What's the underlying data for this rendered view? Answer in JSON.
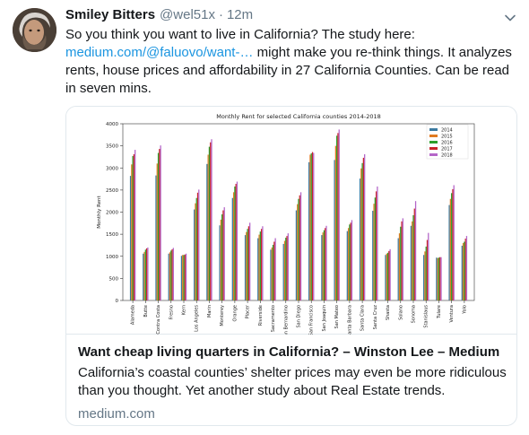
{
  "tweet": {
    "display_name": "Smiley Bitters",
    "handle": "@wel51x",
    "separator": "·",
    "time": "12m",
    "text_line1": "So you think you want to live in California? The study here:",
    "link_text": "medium.com/@faluovo/want-…",
    "text_after_link": " might make you re-think things. It analyzes rents, house prices and affordability in 27 California Counties. Can be read in seven mins."
  },
  "card": {
    "title": "Want cheap living quarters in California? – Winston Lee – Medium",
    "description": "California’s coastal counties’ shelter prices may even be more ridiculous than you thought. Yet another study about Real Estate trends.",
    "domain": "medium.com"
  },
  "icons": {
    "caret": "chevron-down-icon",
    "avatar": "avatar"
  },
  "chart_data": {
    "type": "bar",
    "title": "Monthly Rent for selected California counties 2014-2018",
    "xlabel": "",
    "ylabel": "Monthly Rent",
    "ylim": [
      0,
      4000
    ],
    "yticks": [
      0,
      500,
      1000,
      1500,
      2000,
      2500,
      3000,
      3500,
      4000
    ],
    "grid": false,
    "legend_position": "top-right",
    "colors": [
      "#3b7aa0",
      "#e07b22",
      "#2ca02c",
      "#c8252a",
      "#b466c8"
    ],
    "categories": [
      "Alameda",
      "Butte",
      "Contra Costa",
      "Fresno",
      "Kern",
      "Los Angeles",
      "Marin",
      "Monterey",
      "Orange",
      "Placer",
      "Riverside",
      "Sacramento",
      "San Bernardino",
      "San Diego",
      "San Francisco",
      "San Joaquin",
      "San Mateo",
      "Santa Barbara",
      "Santa Clara",
      "Santa Cruz",
      "Shasta",
      "Solano",
      "Sonoma",
      "Stanislaus",
      "Tulare",
      "Ventura",
      "Yolo"
    ],
    "series": [
      {
        "name": "2014",
        "values": [
          2820,
          1060,
          2830,
          1060,
          1010,
          2060,
          3090,
          1700,
          2320,
          1480,
          1410,
          1150,
          1280,
          2040,
          3130,
          1480,
          3180,
          1570,
          2760,
          2030,
          1030,
          1410,
          1690,
          1030,
          970,
          2160,
          1240
        ]
      },
      {
        "name": "2015",
        "values": [
          3080,
          1100,
          3100,
          1090,
          1030,
          2200,
          3300,
          1830,
          2450,
          1550,
          1490,
          1200,
          1350,
          2180,
          3300,
          1540,
          3500,
          1640,
          2990,
          2190,
          1060,
          1520,
          1790,
          1110,
          960,
          2300,
          1300
        ]
      },
      {
        "name": "2016",
        "values": [
          3270,
          1150,
          3340,
          1130,
          1030,
          2320,
          3480,
          1950,
          2580,
          1620,
          1560,
          1260,
          1420,
          2300,
          3330,
          1590,
          3730,
          1720,
          3110,
          2330,
          1080,
          1670,
          1930,
          1220,
          970,
          2430,
          1330
        ]
      },
      {
        "name": "2017",
        "values": [
          3310,
          1180,
          3430,
          1160,
          1040,
          2440,
          3580,
          2040,
          2640,
          1680,
          1620,
          1330,
          1460,
          2380,
          3360,
          1640,
          3790,
          1760,
          3230,
          2470,
          1120,
          1790,
          2080,
          1370,
          980,
          2520,
          1400
        ]
      },
      {
        "name": "2018",
        "values": [
          3410,
          1200,
          3510,
          1190,
          1060,
          2510,
          3650,
          2110,
          2690,
          1760,
          1680,
          1410,
          1520,
          2450,
          3340,
          1690,
          3870,
          1820,
          3310,
          2580,
          1160,
          1860,
          2250,
          1530,
          980,
          2610,
          1460
        ]
      }
    ]
  }
}
